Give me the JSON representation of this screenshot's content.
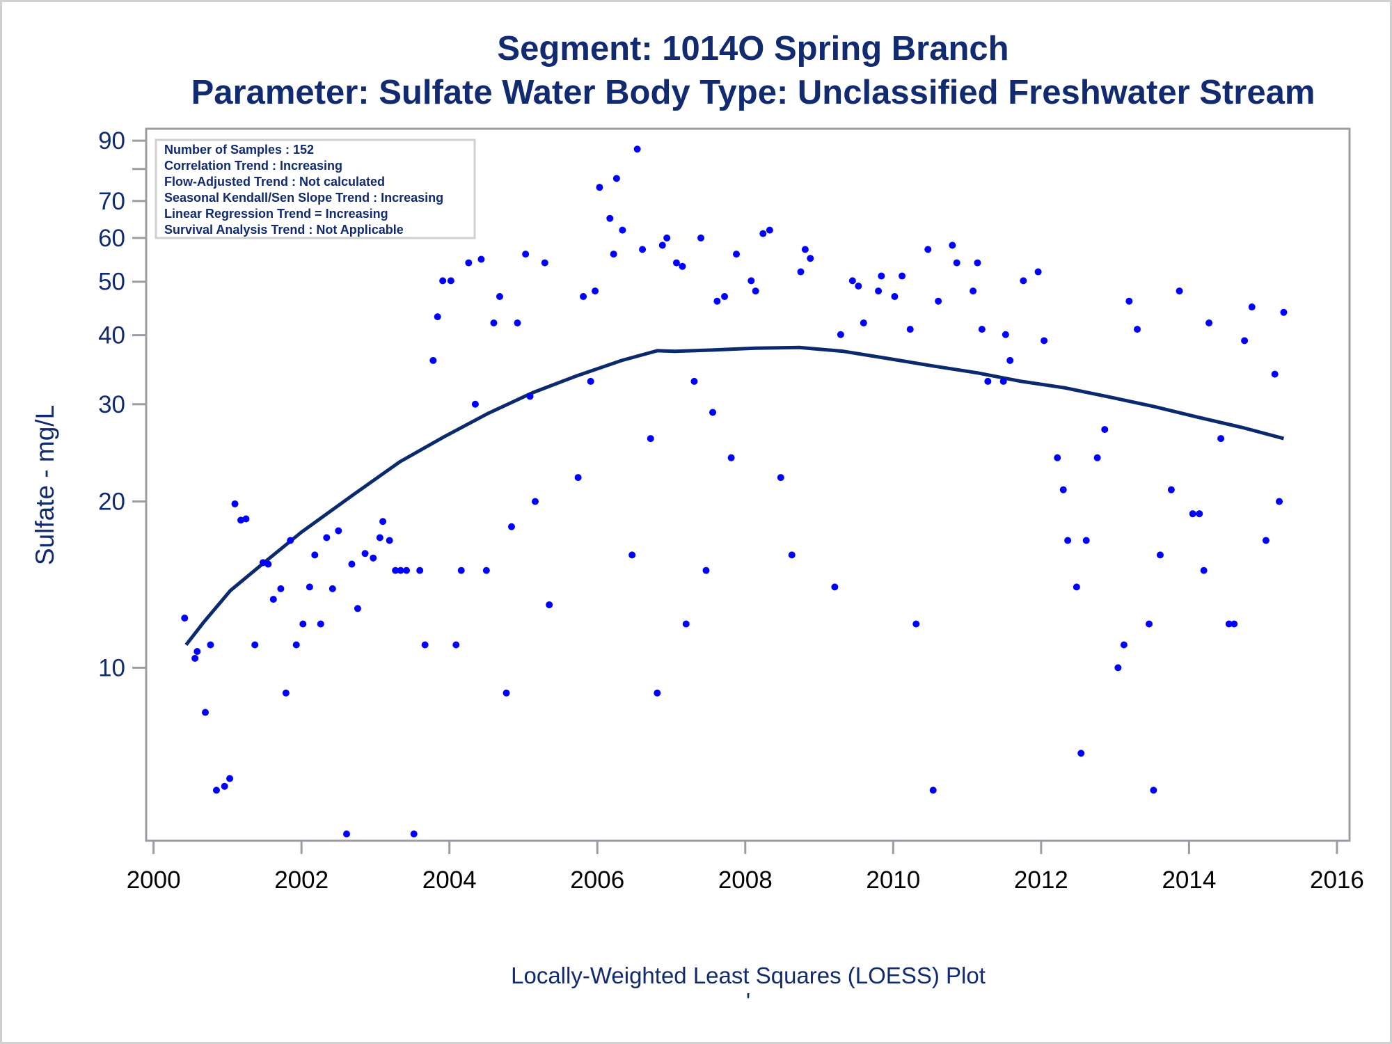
{
  "chart_data": {
    "type": "scatter",
    "title": "Segment: 1014O  Spring Branch",
    "subtitle": "Parameter: Sulfate   Water Body Type: Unclassified Freshwater Stream",
    "xlabel": "",
    "ylabel": "Sulfate - mg/L",
    "footnote": "Locally-Weighted Least Squares (LOESS) Plot",
    "footnote2": "'",
    "xlim": [
      1999.9,
      2016.17
    ],
    "ylim": [
      4.86,
      94.6
    ],
    "yscale": "log",
    "x_ticks": [
      "2000",
      "2002",
      "2004",
      "2006",
      "2008",
      "2010",
      "2012",
      "2014",
      "2016"
    ],
    "y_ticks": [
      {
        "value": 10,
        "label": "10"
      },
      {
        "value": 20,
        "label": "20"
      },
      {
        "value": 30,
        "label": "30"
      },
      {
        "value": 40,
        "label": "40"
      },
      {
        "value": 50,
        "label": "50"
      },
      {
        "value": 60,
        "label": "60"
      },
      {
        "value": 70,
        "label": "70"
      },
      {
        "value": 80,
        "label": ""
      },
      {
        "value": 90,
        "label": "90"
      }
    ],
    "grid": false,
    "colors": {
      "points": "#0000ff",
      "loess": "#0b2a6e",
      "text": "#112a70"
    },
    "inset_legend": {
      "placement": "top-left",
      "lines": [
        "Number of Samples : 152",
        "Correlation Trend : Increasing",
        "Flow-Adjusted Trend : Not calculated",
        "Seasonal Kendall/Sen Slope Trend : Increasing",
        "Linear Regression Trend = Increasing",
        "Survival Analysis Trend : Not Applicable"
      ]
    },
    "series": [
      {
        "name": "Samples",
        "type": "scatter",
        "points": [
          [
            2000.42,
            12.3
          ],
          [
            2000.56,
            10.4
          ],
          [
            2000.59,
            10.7
          ],
          [
            2000.7,
            8.3
          ],
          [
            2000.77,
            11
          ],
          [
            2000.85,
            6
          ],
          [
            2000.96,
            6.1
          ],
          [
            2001.03,
            6.3
          ],
          [
            2001.1,
            19.8
          ],
          [
            2001.18,
            18.5
          ],
          [
            2001.25,
            18.6
          ],
          [
            2001.37,
            11
          ],
          [
            2001.48,
            15.5
          ],
          [
            2001.55,
            15.4
          ],
          [
            2001.62,
            13.3
          ],
          [
            2001.72,
            13.9
          ],
          [
            2001.79,
            9
          ],
          [
            2001.85,
            17
          ],
          [
            2001.93,
            11
          ],
          [
            2002.02,
            12
          ],
          [
            2002.11,
            14
          ],
          [
            2002.18,
            16
          ],
          [
            2002.26,
            12
          ],
          [
            2002.34,
            17.2
          ],
          [
            2002.42,
            13.9
          ],
          [
            2002.5,
            17.7
          ],
          [
            2002.61,
            5
          ],
          [
            2002.68,
            15.4
          ],
          [
            2002.76,
            12.8
          ],
          [
            2002.86,
            16.1
          ],
          [
            2002.97,
            15.8
          ],
          [
            2003.06,
            17.2
          ],
          [
            2003.1,
            18.4
          ],
          [
            2003.19,
            17
          ],
          [
            2003.27,
            15
          ],
          [
            2003.34,
            15
          ],
          [
            2003.42,
            15
          ],
          [
            2003.52,
            5
          ],
          [
            2003.6,
            15
          ],
          [
            2003.67,
            11
          ],
          [
            2003.78,
            36
          ],
          [
            2003.84,
            43.2
          ],
          [
            2003.91,
            50.2
          ],
          [
            2004.02,
            50.2
          ],
          [
            2004.09,
            11
          ],
          [
            2004.16,
            15
          ],
          [
            2004.26,
            54.1
          ],
          [
            2004.35,
            30
          ],
          [
            2004.43,
            54.9
          ],
          [
            2004.5,
            15
          ],
          [
            2004.6,
            42.1
          ],
          [
            2004.68,
            47
          ],
          [
            2004.77,
            9
          ],
          [
            2004.84,
            18
          ],
          [
            2004.92,
            42.1
          ],
          [
            2005.03,
            56.1
          ],
          [
            2005.09,
            31
          ],
          [
            2005.16,
            20
          ],
          [
            2005.29,
            54.1
          ],
          [
            2005.35,
            13
          ],
          [
            2005.74,
            22.1
          ],
          [
            2005.81,
            47
          ],
          [
            2005.91,
            33
          ],
          [
            2005.97,
            48.1
          ],
          [
            2006.03,
            74.1
          ],
          [
            2006.17,
            65.1
          ],
          [
            2006.22,
            56.1
          ],
          [
            2006.26,
            76.9
          ],
          [
            2006.34,
            62
          ],
          [
            2006.47,
            16
          ],
          [
            2006.54,
            86.9
          ],
          [
            2006.61,
            57.2
          ],
          [
            2006.72,
            26
          ],
          [
            2006.81,
            9
          ],
          [
            2006.88,
            58.2
          ],
          [
            2006.94,
            60
          ],
          [
            2007.07,
            54.1
          ],
          [
            2007.15,
            53.3
          ],
          [
            2007.2,
            12
          ],
          [
            2007.31,
            33
          ],
          [
            2007.4,
            60
          ],
          [
            2007.47,
            15
          ],
          [
            2007.56,
            29
          ],
          [
            2007.62,
            46.1
          ],
          [
            2007.72,
            47
          ],
          [
            2007.81,
            24
          ],
          [
            2007.88,
            56.1
          ],
          [
            2008.08,
            50.2
          ],
          [
            2008.14,
            48.1
          ],
          [
            2008.24,
            61.1
          ],
          [
            2008.33,
            62
          ],
          [
            2008.48,
            22.1
          ],
          [
            2008.63,
            16
          ],
          [
            2008.75,
            52.1
          ],
          [
            2008.81,
            57.2
          ],
          [
            2008.88,
            55.1
          ],
          [
            2009.21,
            14
          ],
          [
            2009.29,
            40.1
          ],
          [
            2009.45,
            50.2
          ],
          [
            2009.53,
            49.1
          ],
          [
            2009.6,
            42.1
          ],
          [
            2009.8,
            48.1
          ],
          [
            2009.84,
            51.2
          ],
          [
            2010.02,
            47
          ],
          [
            2010.12,
            51.2
          ],
          [
            2010.23,
            41
          ],
          [
            2010.31,
            12
          ],
          [
            2010.47,
            57.2
          ],
          [
            2010.54,
            6
          ],
          [
            2010.61,
            46.1
          ],
          [
            2010.8,
            58.2
          ],
          [
            2010.86,
            54.1
          ],
          [
            2011.08,
            48.1
          ],
          [
            2011.14,
            54.1
          ],
          [
            2011.2,
            41
          ],
          [
            2011.28,
            33
          ],
          [
            2011.49,
            33
          ],
          [
            2011.52,
            40.1
          ],
          [
            2011.58,
            36
          ],
          [
            2011.76,
            50.2
          ],
          [
            2011.96,
            52.1
          ],
          [
            2012.04,
            39.1
          ],
          [
            2012.22,
            24
          ],
          [
            2012.3,
            21
          ],
          [
            2012.36,
            17
          ],
          [
            2012.48,
            14
          ],
          [
            2012.54,
            7
          ],
          [
            2012.61,
            17
          ],
          [
            2012.76,
            24
          ],
          [
            2012.86,
            27
          ],
          [
            2013.04,
            10
          ],
          [
            2013.12,
            11
          ],
          [
            2013.19,
            46.1
          ],
          [
            2013.3,
            41
          ],
          [
            2013.46,
            12
          ],
          [
            2013.52,
            6
          ],
          [
            2013.61,
            16
          ],
          [
            2013.76,
            21
          ],
          [
            2013.87,
            48.1
          ],
          [
            2014.05,
            19
          ],
          [
            2014.14,
            19
          ],
          [
            2014.2,
            15
          ],
          [
            2014.27,
            42.1
          ],
          [
            2014.43,
            26
          ],
          [
            2014.54,
            12
          ],
          [
            2014.61,
            12
          ],
          [
            2014.75,
            39.1
          ],
          [
            2014.85,
            45
          ],
          [
            2015.04,
            17
          ],
          [
            2015.16,
            34
          ],
          [
            2015.22,
            20
          ],
          [
            2015.28,
            44
          ]
        ]
      },
      {
        "name": "LOESS",
        "type": "line",
        "points": [
          [
            2000.44,
            11.0
          ],
          [
            2000.68,
            12.1
          ],
          [
            2001.04,
            13.8
          ],
          [
            2001.52,
            15.6
          ],
          [
            2002.0,
            17.6
          ],
          [
            2002.73,
            20.7
          ],
          [
            2003.33,
            23.6
          ],
          [
            2003.93,
            26.2
          ],
          [
            2004.53,
            28.9
          ],
          [
            2005.13,
            31.5
          ],
          [
            2005.73,
            33.8
          ],
          [
            2006.33,
            36.0
          ],
          [
            2006.81,
            37.5
          ],
          [
            2007.05,
            37.4
          ],
          [
            2007.53,
            37.6
          ],
          [
            2008.13,
            37.9
          ],
          [
            2008.73,
            38.0
          ],
          [
            2009.33,
            37.4
          ],
          [
            2009.93,
            36.3
          ],
          [
            2010.53,
            35.2
          ],
          [
            2011.13,
            34.2
          ],
          [
            2011.73,
            33.0
          ],
          [
            2012.33,
            32.1
          ],
          [
            2012.93,
            30.9
          ],
          [
            2013.53,
            29.7
          ],
          [
            2014.13,
            28.4
          ],
          [
            2014.73,
            27.2
          ],
          [
            2015.28,
            26.0
          ]
        ]
      }
    ]
  }
}
